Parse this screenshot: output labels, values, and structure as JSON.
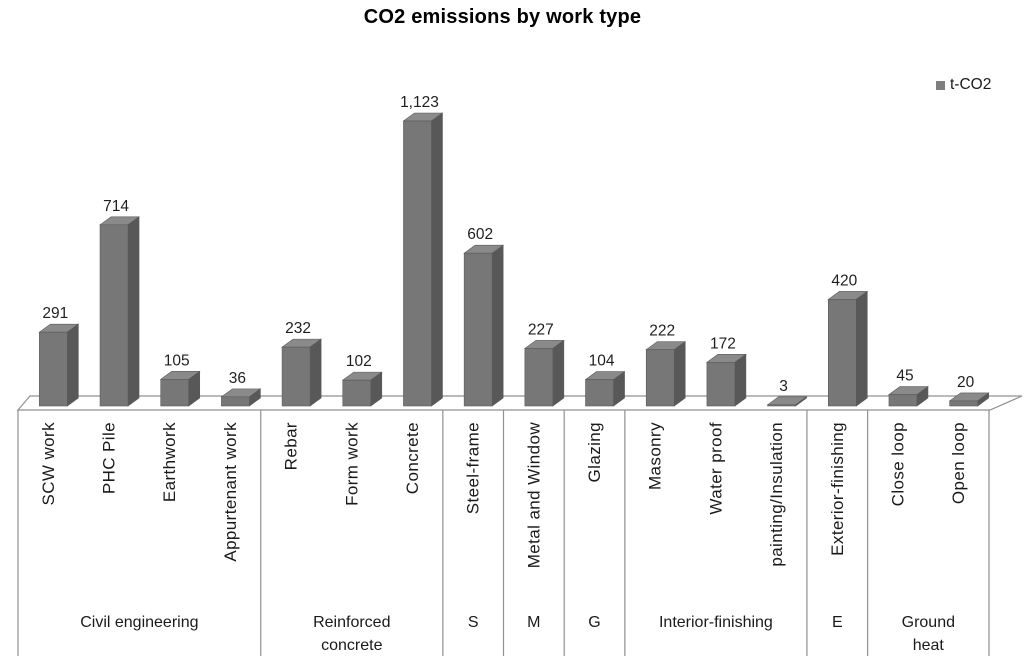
{
  "title": "CO2 emissions by work type",
  "legend": {
    "label": "t-CO2",
    "swatch_color": "#7f7f7f"
  },
  "chart_data": {
    "type": "bar",
    "title": "CO2 emissions by work type",
    "legend_position": "top-right",
    "grid": false,
    "ylim": [
      0,
      1200
    ],
    "categories": [
      "SCW work",
      "PHC Pile",
      "Earthwork",
      "Appurtenant work",
      "Rebar",
      "Form work",
      "Concrete",
      "Steel-frame",
      "Metal and Window",
      "Glazing",
      "Masonry",
      "Water proof",
      "painting/Insulation",
      "Exterior-finishing",
      "Close loop",
      "Open loop"
    ],
    "series": [
      {
        "name": "t-CO2",
        "values": [
          291,
          714,
          105,
          36,
          232,
          102,
          1123,
          602,
          227,
          104,
          222,
          172,
          3,
          420,
          45,
          20
        ]
      }
    ],
    "value_labels": [
      "291",
      "714",
      "105",
      "36",
      "232",
      "102",
      "1,123",
      "602",
      "227",
      "104",
      "222",
      "172",
      "3",
      "420",
      "45",
      "20"
    ],
    "groups": [
      {
        "label": "Civil engineering",
        "lines": [
          "Civil engineering"
        ],
        "span": 4
      },
      {
        "label": "Reinforced concrete",
        "lines": [
          "Reinforced",
          "concrete"
        ],
        "span": 3
      },
      {
        "label": "S",
        "lines": [
          "S"
        ],
        "span": 1
      },
      {
        "label": "M",
        "lines": [
          "M"
        ],
        "span": 1
      },
      {
        "label": "G",
        "lines": [
          "G"
        ],
        "span": 1
      },
      {
        "label": "Interior-finishing",
        "lines": [
          "Interior-finishing"
        ],
        "span": 3
      },
      {
        "label": "E",
        "lines": [
          "E"
        ],
        "span": 1
      },
      {
        "label": "Ground heat",
        "lines": [
          "Ground",
          "heat"
        ],
        "span": 2
      }
    ],
    "colors": {
      "bar_front": "#777777",
      "bar_side": "#585858",
      "bar_top": "#8a8a8a",
      "bar_edge": "#5a5a5a",
      "axis_line": "#909090",
      "label_text": "#1a1a1a"
    }
  }
}
